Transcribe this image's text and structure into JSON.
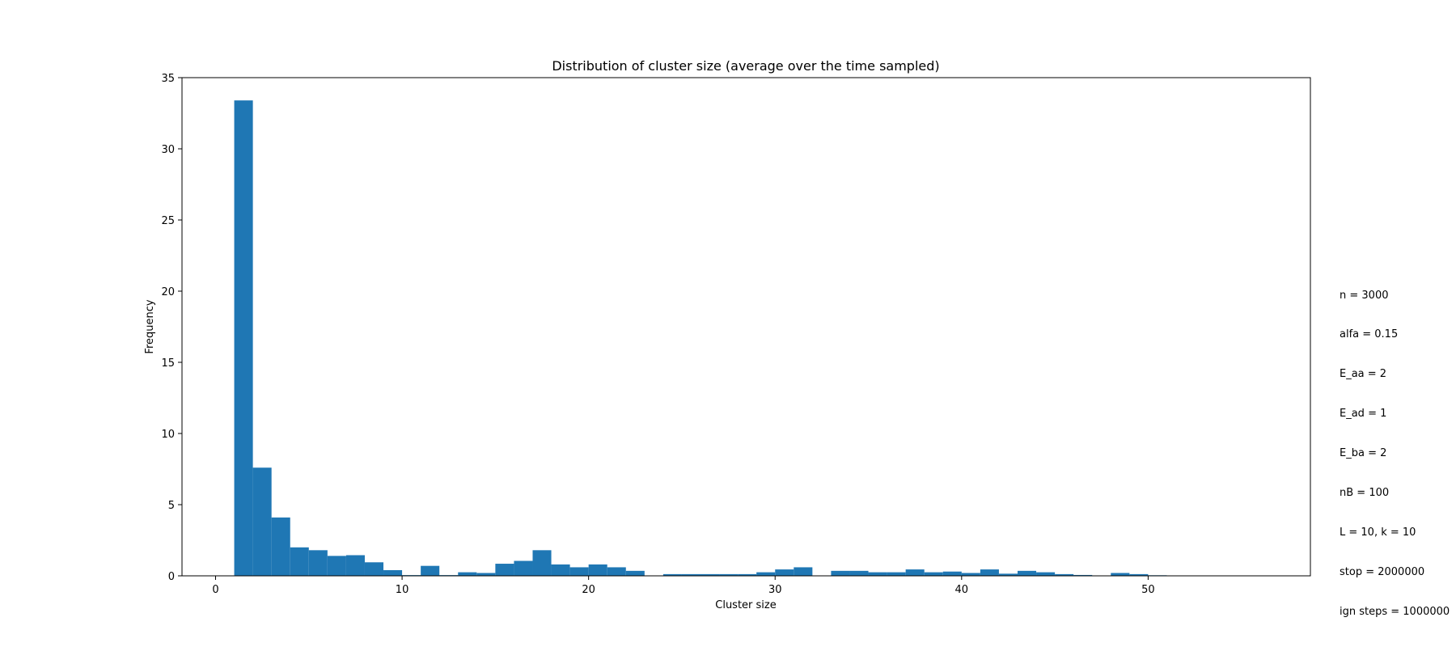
{
  "chart_data": {
    "type": "bar",
    "title": "Distribution of cluster size (average over the time sampled)",
    "xlabel": "Cluster size",
    "ylabel": "Frequency",
    "xlim": [
      -1.8,
      58.7
    ],
    "ylim": [
      0,
      35
    ],
    "xticks": [
      0,
      10,
      20,
      30,
      40,
      50
    ],
    "yticks": [
      0,
      5,
      10,
      15,
      20,
      25,
      30,
      35
    ],
    "bar_color": "#1f77b4",
    "bin_width": 1,
    "bins_start": [
      1,
      2,
      3,
      4,
      5,
      6,
      7,
      8,
      9,
      10,
      11,
      12,
      13,
      14,
      15,
      16,
      17,
      18,
      19,
      20,
      21,
      22,
      23,
      24,
      25,
      26,
      27,
      28,
      29,
      30,
      31,
      32,
      33,
      34,
      35,
      36,
      37,
      38,
      39,
      40,
      41,
      42,
      43,
      44,
      45,
      46,
      47,
      48,
      49,
      50,
      51,
      52,
      53,
      54,
      55,
      56
    ],
    "values": [
      33.4,
      7.6,
      4.1,
      2.0,
      1.8,
      1.4,
      1.45,
      0.95,
      0.4,
      0.05,
      0.7,
      0.05,
      0.25,
      0.2,
      0.85,
      1.05,
      1.8,
      0.8,
      0.6,
      0.8,
      0.6,
      0.35,
      0.0,
      0.12,
      0.12,
      0.12,
      0.12,
      0.12,
      0.25,
      0.45,
      0.6,
      0.0,
      0.35,
      0.35,
      0.25,
      0.25,
      0.45,
      0.25,
      0.3,
      0.2,
      0.45,
      0.15,
      0.35,
      0.25,
      0.12,
      0.06,
      0.0,
      0.2,
      0.12,
      0.04,
      0.02,
      0.0,
      0.0,
      0.0,
      0.0,
      0.0
    ],
    "grid": false,
    "legend": "none"
  },
  "annotation": {
    "lines": [
      "n = 3000",
      "alfa = 0.15",
      "E_aa = 2",
      "E_ad = 1",
      "E_ba = 2",
      "nB = 100",
      "L = 10, k = 10",
      "stop = 2000000",
      "ign steps = 1000000"
    ]
  }
}
